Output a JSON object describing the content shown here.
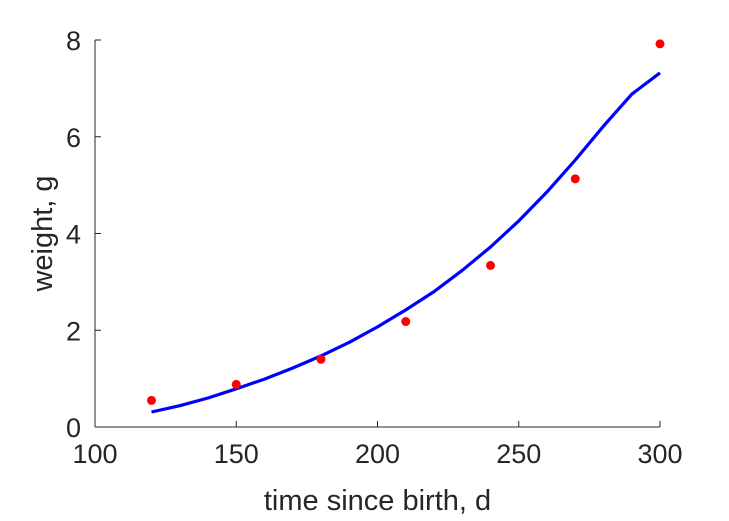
{
  "chart_data": {
    "type": "scatter",
    "title": "",
    "xlabel": "time since birth, d",
    "ylabel": "weight, g",
    "xlim": [
      100,
      300
    ],
    "ylim": [
      0,
      8
    ],
    "xticks": [
      100,
      150,
      200,
      250,
      300
    ],
    "yticks": [
      0,
      2,
      4,
      6,
      8
    ],
    "grid": false,
    "series": [
      {
        "type": "scatter",
        "color": "#ff0000",
        "points": [
          {
            "x": 120,
            "y": 0.55
          },
          {
            "x": 150,
            "y": 0.88
          },
          {
            "x": 180,
            "y": 1.4
          },
          {
            "x": 210,
            "y": 2.18
          },
          {
            "x": 240,
            "y": 3.34
          },
          {
            "x": 270,
            "y": 5.13
          },
          {
            "x": 300,
            "y": 7.92
          }
        ]
      },
      {
        "type": "line",
        "color": "#0000ff",
        "points": [
          {
            "x": 120,
            "y": 0.31
          },
          {
            "x": 130,
            "y": 0.44
          },
          {
            "x": 140,
            "y": 0.6
          },
          {
            "x": 150,
            "y": 0.79
          },
          {
            "x": 160,
            "y": 0.99
          },
          {
            "x": 170,
            "y": 1.22
          },
          {
            "x": 180,
            "y": 1.47
          },
          {
            "x": 190,
            "y": 1.75
          },
          {
            "x": 200,
            "y": 2.07
          },
          {
            "x": 210,
            "y": 2.42
          },
          {
            "x": 220,
            "y": 2.8
          },
          {
            "x": 230,
            "y": 3.24
          },
          {
            "x": 240,
            "y": 3.72
          },
          {
            "x": 250,
            "y": 4.26
          },
          {
            "x": 260,
            "y": 4.86
          },
          {
            "x": 270,
            "y": 5.52
          },
          {
            "x": 280,
            "y": 6.22
          },
          {
            "x": 290,
            "y": 6.88
          },
          {
            "x": 300,
            "y": 7.32
          }
        ]
      }
    ]
  }
}
